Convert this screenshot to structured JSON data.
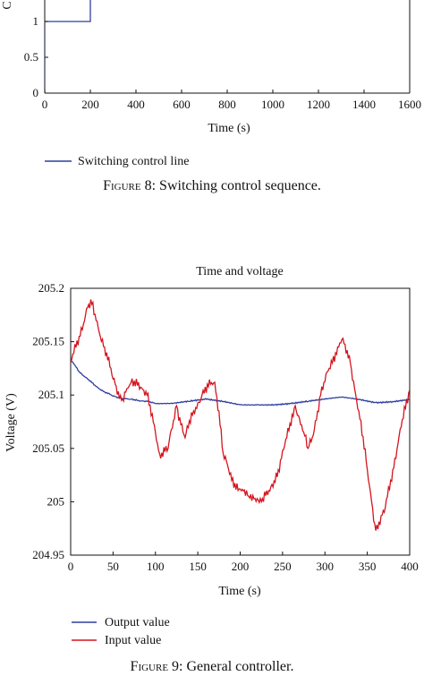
{
  "figure8": {
    "caption_label": "Figure 8:",
    "caption_text": "Switching control sequence.",
    "legend": "Switching control line",
    "xlabel": "Time (s)",
    "ylabel_fragment": "C",
    "colors": {
      "line": "#2f3fa0"
    },
    "chart_data": {
      "type": "line",
      "title": "",
      "xlabel": "Time (s)",
      "ylabel": "C",
      "xlim": [
        0,
        1600
      ],
      "ylim": [
        0,
        1
      ],
      "xticks": [
        0,
        200,
        400,
        600,
        800,
        1000,
        1200,
        1400,
        1600
      ],
      "yticks": [
        0,
        0.5,
        1
      ],
      "series": [
        {
          "name": "Switching control line",
          "x": [
            0,
            0,
            200,
            200
          ],
          "y": [
            0,
            1,
            1,
            1.4
          ]
        }
      ]
    }
  },
  "figure9": {
    "caption_label": "Figure 9:",
    "caption_text": "General controller.",
    "colors": {
      "output": "#2f3fa0",
      "input": "#d4151f"
    },
    "chart_data": {
      "type": "line",
      "title": "Time and voltage",
      "xlabel": "Time (s)",
      "ylabel": "Voltage (V)",
      "xlim": [
        0,
        400
      ],
      "ylim": [
        204.95,
        205.2
      ],
      "xticks": [
        0,
        50,
        100,
        150,
        200,
        250,
        300,
        350,
        400
      ],
      "yticks": [
        204.95,
        205,
        205.05,
        205.1,
        205.15,
        205.2
      ],
      "ytick_labels": [
        "204.95",
        "205",
        "205.05",
        "205.1",
        "205.15",
        "205.2"
      ],
      "series": [
        {
          "name": "Output value",
          "x": [
            0,
            5,
            10,
            20,
            30,
            40,
            50,
            60,
            70,
            80,
            90,
            100,
            120,
            140,
            160,
            180,
            200,
            220,
            240,
            260,
            280,
            300,
            320,
            340,
            360,
            380,
            400
          ],
          "y": [
            205.133,
            205.128,
            205.122,
            205.115,
            205.108,
            205.103,
            205.099,
            205.097,
            205.096,
            205.095,
            205.094,
            205.092,
            205.092,
            205.094,
            205.096,
            205.094,
            205.091,
            205.091,
            205.091,
            205.092,
            205.094,
            205.096,
            205.098,
            205.096,
            205.093,
            205.094,
            205.096
          ]
        },
        {
          "name": "Input value",
          "x": [
            0,
            10,
            20,
            25,
            30,
            40,
            50,
            60,
            70,
            80,
            90,
            100,
            105,
            115,
            125,
            135,
            145,
            155,
            165,
            170,
            175,
            180,
            190,
            200,
            210,
            220,
            225,
            235,
            245,
            255,
            265,
            275,
            280,
            285,
            295,
            305,
            315,
            320,
            330,
            340,
            350,
            360,
            370,
            380,
            390,
            400
          ],
          "y": [
            205.13,
            205.155,
            205.182,
            205.185,
            205.17,
            205.145,
            205.115,
            205.095,
            205.11,
            205.112,
            205.1,
            205.065,
            205.045,
            205.05,
            205.09,
            205.06,
            205.085,
            205.1,
            205.11,
            205.112,
            205.085,
            205.045,
            205.02,
            205.012,
            205.005,
            205.003,
            205.0,
            205.01,
            205.03,
            205.06,
            205.09,
            205.065,
            205.05,
            205.06,
            205.1,
            205.125,
            205.145,
            205.152,
            205.13,
            205.085,
            205.03,
            204.973,
            204.99,
            205.03,
            205.07,
            205.105
          ]
        }
      ]
    }
  }
}
